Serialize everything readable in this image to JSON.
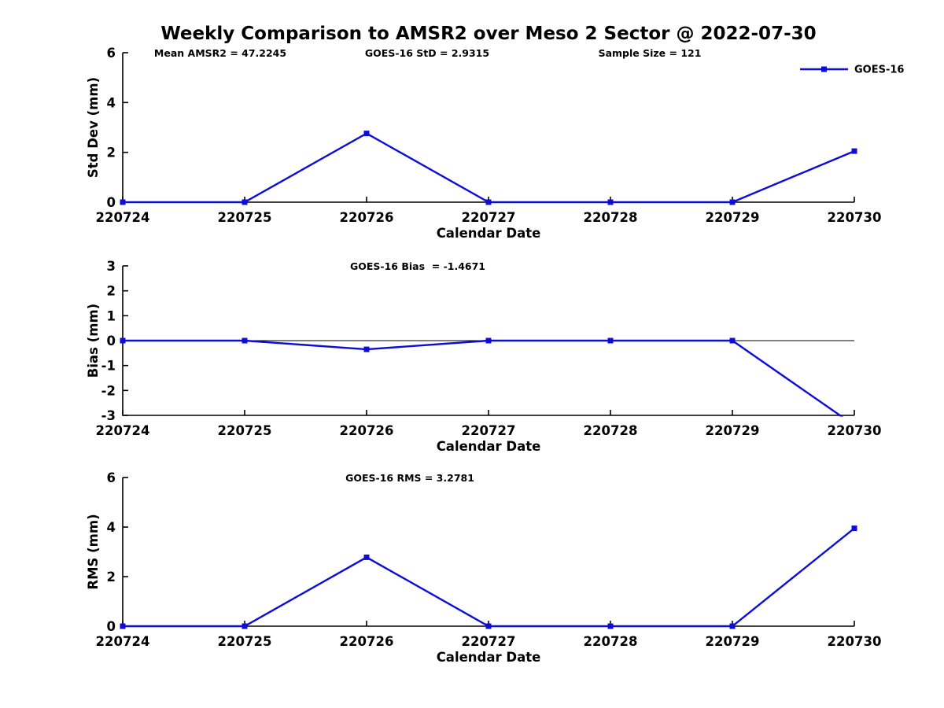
{
  "figure_title": "Weekly Comparison to AMSR2 over Meso 2 Sector @ 2022-07-30",
  "legend": {
    "label": "GOES-16",
    "marker": "filled-square",
    "position": "top-right"
  },
  "colors": {
    "series": "#0d0dd9",
    "axis": "#000000",
    "text": "#000000",
    "background": "#ffffff"
  },
  "chart_data": [
    {
      "id": "std_dev",
      "type": "line",
      "annotations": [
        "Mean AMSR2 = 47.2245",
        "GOES-16 StD = 2.9315",
        "Sample Size = 121"
      ],
      "categories": [
        "220724",
        "220725",
        "220726",
        "220727",
        "220728",
        "220729",
        "220730"
      ],
      "series": [
        {
          "name": "GOES-16",
          "values": [
            0,
            0,
            2.76,
            0,
            0,
            0,
            2.05
          ]
        }
      ],
      "xlabel": "Calendar Date",
      "ylabel": "Std Dev (mm)",
      "ylim": [
        0,
        6
      ],
      "yticks": [
        0,
        2,
        4,
        6
      ],
      "grid": false,
      "zero_line": false,
      "show_legend": true
    },
    {
      "id": "bias",
      "type": "line",
      "annotations": [
        "GOES-16 Bias  = -1.4671"
      ],
      "categories": [
        "220724",
        "220725",
        "220726",
        "220727",
        "220728",
        "220729",
        "220730"
      ],
      "series": [
        {
          "name": "GOES-16",
          "values": [
            0,
            0,
            -0.35,
            0,
            0,
            0,
            -3.4
          ]
        }
      ],
      "xlabel": "Calendar Date",
      "ylabel": "Bias (mm)",
      "ylim": [
        -3,
        3
      ],
      "yticks": [
        3,
        2,
        1,
        0,
        -1,
        -2,
        -3
      ],
      "grid": false,
      "zero_line": true,
      "show_legend": false
    },
    {
      "id": "rms",
      "type": "line",
      "annotations": [
        "GOES-16 RMS = 3.2781"
      ],
      "categories": [
        "220724",
        "220725",
        "220726",
        "220727",
        "220728",
        "220729",
        "220730"
      ],
      "series": [
        {
          "name": "GOES-16",
          "values": [
            0,
            0,
            2.78,
            0,
            0,
            0,
            3.95
          ]
        }
      ],
      "xlabel": "Calendar Date",
      "ylabel": "RMS (mm)",
      "ylim": [
        0,
        6
      ],
      "yticks": [
        0,
        2,
        4,
        6
      ],
      "grid": false,
      "zero_line": false,
      "show_legend": false
    }
  ]
}
